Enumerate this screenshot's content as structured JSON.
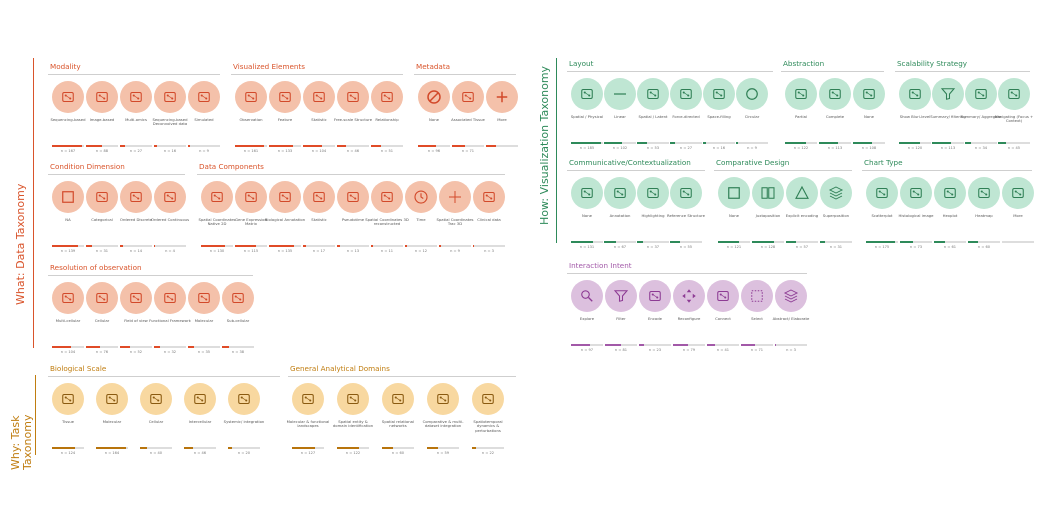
{
  "colors": {
    "data_accent": "#d9542b",
    "data_circle": "#f4c1aa",
    "data_icon": "#d2492a",
    "data_bar": "#e04b27",
    "task_accent": "#c07d10",
    "task_circle": "#f8d8a0",
    "task_icon": "#8a5a10",
    "task_bar": "#b8740c",
    "vis_accent": "#2e8a5a",
    "vis_circle": "#bfe6d3",
    "vis_icon": "#2f7f55",
    "vis_bar": "#2e8a5a",
    "int_accent": "#a259a8",
    "int_circle": "#dcc0de",
    "int_icon": "#8d3b94",
    "int_bar": "#a259a8"
  },
  "axes": {
    "what": "What: Data Taxonomy",
    "why": "Why: Task Taxonomy",
    "how": "How: Visualization Taxonomy"
  },
  "sections": [
    {
      "id": "modality",
      "title": "Modality",
      "theme": "data",
      "items": [
        {
          "label": "Sequencing-based",
          "count": "n = 167",
          "value": 0.95,
          "icon": "barcode-icon"
        },
        {
          "label": "Image-based",
          "count": "n = 88",
          "value": 0.5,
          "icon": "microscope-icon"
        },
        {
          "label": "Multi-omics",
          "count": "n = 27",
          "value": 0.16,
          "icon": "monitor-icon"
        },
        {
          "label": "Sequencing-based Deconvolved data",
          "count": "n = 16",
          "value": 0.1,
          "icon": "deconvolution-icon"
        },
        {
          "label": "Simulated",
          "count": "n = 9",
          "value": 0.05,
          "icon": "simulation-screen-icon"
        }
      ]
    },
    {
      "id": "visualized-elements",
      "title": "Visualized Elements",
      "theme": "data",
      "items": [
        {
          "label": "Observation",
          "count": "n = 161",
          "value": 0.92,
          "icon": "cell-observation-icon"
        },
        {
          "label": "Feature",
          "count": "n = 133",
          "value": 0.76,
          "icon": "dna-feature-icon"
        },
        {
          "label": "Statistic",
          "count": "n = 104",
          "value": 0.6,
          "icon": "statistic-chart-icon"
        },
        {
          "label": "Free-scale Structure",
          "count": "n = 46",
          "value": 0.27,
          "icon": "ring-structure-icon"
        },
        {
          "label": "Relationship",
          "count": "n = 51",
          "value": 0.3,
          "icon": "relationship-graph-icon"
        }
      ]
    },
    {
      "id": "metadata",
      "title": "Metadata",
      "theme": "data",
      "items": [
        {
          "label": "None",
          "count": "n = 96",
          "value": 0.55,
          "icon": "none-icon"
        },
        {
          "label": "Associated Tissue",
          "count": "n = 71",
          "value": 0.41,
          "icon": "tissue-slide-icon"
        },
        {
          "label": "More",
          "count": "",
          "value": 0.3,
          "icon": "plus-icon"
        }
      ]
    },
    {
      "id": "condition-dimension",
      "title": "Condition Dimension",
      "theme": "data",
      "items": [
        {
          "label": "NA",
          "count": "n = 139",
          "value": 0.8,
          "icon": "square-icon"
        },
        {
          "label": "Categorical",
          "count": "n = 31",
          "value": 0.18,
          "icon": "categorical-icon"
        },
        {
          "label": "Ordered Discrete",
          "count": "n = 14",
          "value": 0.08,
          "icon": "ordered-list-icon"
        },
        {
          "label": "Ordered Continuous",
          "count": "n = 4",
          "value": 0.03,
          "icon": "continuous-arrow-icon"
        }
      ]
    },
    {
      "id": "data-components",
      "title": "Data Components",
      "theme": "data",
      "items": [
        {
          "label": "Spatial Coordinates Native 2D",
          "count": "n = 130",
          "value": 0.75,
          "icon": "spatial-grid-icon"
        },
        {
          "label": "Gene Expression Matrix",
          "count": "n = 115",
          "value": 0.66,
          "icon": "matrix-icon"
        },
        {
          "label": "Biological Annotation",
          "count": "n = 135",
          "value": 0.78,
          "icon": "tag-icon"
        },
        {
          "label": "Statistic",
          "count": "n = 17",
          "value": 0.1,
          "icon": "bar-stat-icon"
        },
        {
          "label": "Pseudotime",
          "count": "n = 13",
          "value": 0.08,
          "icon": "pseudotime-icon"
        },
        {
          "label": "Spatial Coordinates 3D reconstructed",
          "count": "n = 11",
          "value": 0.07,
          "icon": "axes-3d-icon"
        },
        {
          "label": "Time",
          "count": "n = 12",
          "value": 0.07,
          "icon": "clock-icon"
        },
        {
          "label": "Spatial Coordinates Trac 3D",
          "count": "n = 9",
          "value": 0.05,
          "icon": "crosshair-icon"
        },
        {
          "label": "Clinical data",
          "count": "n = 3",
          "value": 0.02,
          "icon": "clinical-icon"
        }
      ]
    },
    {
      "id": "resolution",
      "title": "Resolution of observation",
      "theme": "data",
      "items": [
        {
          "label": "Multi-cellular",
          "count": "n = 104",
          "value": 0.6,
          "icon": "multicellular-icon"
        },
        {
          "label": "Cellular",
          "count": "n = 76",
          "value": 0.44,
          "icon": "cell-icon"
        },
        {
          "label": "Field of view",
          "count": "n = 52",
          "value": 0.3,
          "icon": "field-of-view-icon"
        },
        {
          "label": "Functional Framework",
          "count": "n = 32",
          "value": 0.19,
          "icon": "framework-icon"
        },
        {
          "label": "Molecular",
          "count": "n = 35",
          "value": 0.2,
          "icon": "molecule-icon"
        },
        {
          "label": "Sub-cellular",
          "count": "n = 38",
          "value": 0.22,
          "icon": "subcellular-icon"
        }
      ]
    },
    {
      "id": "biological-scale",
      "title": "Biological Scale",
      "theme": "task",
      "items": [
        {
          "label": "Tissue",
          "count": "n = 124",
          "value": 0.72,
          "icon": "tissue-icon"
        },
        {
          "label": "Molecular",
          "count": "n = 164",
          "value": 0.94,
          "icon": "dna-icon"
        },
        {
          "label": "Cellular",
          "count": "n = 40",
          "value": 0.23,
          "icon": "cell-scale-icon"
        },
        {
          "label": "Intercellular",
          "count": "n = 46",
          "value": 0.27,
          "icon": "intercellular-icon"
        },
        {
          "label": "Systemic/ integration",
          "count": "n = 20",
          "value": 0.12,
          "icon": "systemic-icon"
        }
      ]
    },
    {
      "id": "general-analytical-domains",
      "title": "General Analytical Domains",
      "theme": "task",
      "items": [
        {
          "label": "Molecular & functional landscapes",
          "count": "n = 127",
          "value": 0.73,
          "icon": "landscape-icon"
        },
        {
          "label": "Spatial entity & domain identification",
          "count": "n = 122",
          "value": 0.7,
          "icon": "domain-id-icon"
        },
        {
          "label": "Spatial relational networks",
          "count": "n = 60",
          "value": 0.35,
          "icon": "network-icon"
        },
        {
          "label": "Comparative & multi-dataset integration",
          "count": "n = 59",
          "value": 0.34,
          "icon": "integration-icon"
        },
        {
          "label": "Spatiotemporal dynamics & perturbations",
          "count": "n = 22",
          "value": 0.13,
          "icon": "spatiotemporal-icon"
        }
      ]
    },
    {
      "id": "layout",
      "title": "Layout",
      "theme": "vis",
      "items": [
        {
          "label": "Spatial / Physical",
          "count": "n = 185",
          "value": 0.95,
          "icon": "spatial-layout-icon"
        },
        {
          "label": "Linear",
          "count": "n = 102",
          "value": 0.55,
          "icon": "linear-icon"
        },
        {
          "label": "Spatial / Latent",
          "count": "n = 53",
          "value": 0.3,
          "icon": "latent-icon"
        },
        {
          "label": "Force-directed",
          "count": "n = 27",
          "value": 0.15,
          "icon": "force-directed-icon"
        },
        {
          "label": "Space-filling",
          "count": "n = 16",
          "value": 0.09,
          "icon": "space-filling-icon"
        },
        {
          "label": "Circular",
          "count": "n = 9",
          "value": 0.05,
          "icon": "circular-icon"
        }
      ]
    },
    {
      "id": "abstraction",
      "title": "Abstraction",
      "theme": "vis",
      "items": [
        {
          "label": "Partial",
          "count": "n = 122",
          "value": 0.66,
          "icon": "partial-icon"
        },
        {
          "label": "Complete",
          "count": "n = 113",
          "value": 0.6,
          "icon": "complete-icon"
        },
        {
          "label": "None",
          "count": "n = 108",
          "value": 0.58,
          "icon": "raw-image-icon"
        }
      ]
    },
    {
      "id": "scalability-strategy",
      "title": "Scalability Strategy",
      "theme": "vis",
      "items": [
        {
          "label": "Show Bluri-level",
          "count": "n = 120",
          "value": 0.65,
          "icon": "dots-grid-icon"
        },
        {
          "label": "Summary/ filtering",
          "count": "n = 113",
          "value": 0.6,
          "icon": "funnel-icon"
        },
        {
          "label": "Summary/ Aggregate",
          "count": "n = 34",
          "value": 0.2,
          "icon": "aggregate-icon"
        },
        {
          "label": "Navigating (Focus + Context)",
          "count": "n = 45",
          "value": 0.25,
          "icon": "navigate-hand-icon"
        }
      ]
    },
    {
      "id": "communicative",
      "title": "Communicative/Contextualization",
      "theme": "vis",
      "items": [
        {
          "label": "None",
          "count": "n = 131",
          "value": 0.7,
          "icon": "dots-none-icon"
        },
        {
          "label": "Annotation",
          "count": "n = 67",
          "value": 0.36,
          "icon": "annotation-icon"
        },
        {
          "label": "Highlighting",
          "count": "n = 37",
          "value": 0.2,
          "icon": "highlight-icon"
        },
        {
          "label": "Reference Structure",
          "count": "n = 55",
          "value": 0.3,
          "icon": "reference-grid-icon"
        }
      ]
    },
    {
      "id": "comparative-design",
      "title": "Comparative Design",
      "theme": "vis",
      "items": [
        {
          "label": "None",
          "count": "n = 121",
          "value": 0.65,
          "icon": "square-none-icon"
        },
        {
          "label": "Juxtaposition",
          "count": "n = 128",
          "value": 0.68,
          "icon": "juxtapose-icon"
        },
        {
          "label": "Explicit encoding",
          "count": "n = 57",
          "value": 0.3,
          "icon": "triangle-icon"
        },
        {
          "label": "Superposition",
          "count": "n = 31",
          "value": 0.17,
          "icon": "layers-icon"
        }
      ]
    },
    {
      "id": "chart-type",
      "title": "Chart Type",
      "theme": "vis",
      "items": [
        {
          "label": "Scatterplot",
          "count": "n = 175",
          "value": 0.92,
          "icon": "scatter-icon"
        },
        {
          "label": "Histological image",
          "count": "n = 73",
          "value": 0.4,
          "icon": "histology-icon"
        },
        {
          "label": "Hexplot",
          "count": "n = 61",
          "value": 0.33,
          "icon": "hexplot-icon"
        },
        {
          "label": "Heatmap",
          "count": "n = 60",
          "value": 0.32,
          "icon": "heatmap-icon"
        },
        {
          "label": "More",
          "count": "",
          "value": 0.0,
          "icon": "more-icon"
        }
      ]
    },
    {
      "id": "interaction-intent",
      "title": "Interaction Intent",
      "theme": "int",
      "items": [
        {
          "label": "Explore",
          "count": "n = 97",
          "value": 0.6,
          "icon": "magnifier-icon"
        },
        {
          "label": "Filter",
          "count": "n = 81",
          "value": 0.5,
          "icon": "filter-icon"
        },
        {
          "label": "Encode",
          "count": "n = 23",
          "value": 0.15,
          "icon": "encode-icon"
        },
        {
          "label": "Reconfigure",
          "count": "n = 79",
          "value": 0.48,
          "icon": "reconfigure-icon"
        },
        {
          "label": "Connect",
          "count": "n = 41",
          "value": 0.26,
          "icon": "connect-icon"
        },
        {
          "label": "Select",
          "count": "n = 71",
          "value": 0.44,
          "icon": "select-icon"
        },
        {
          "label": "Abstract/ Elaborate",
          "count": "n = 3",
          "value": 0.02,
          "icon": "stack-icon"
        }
      ]
    }
  ]
}
